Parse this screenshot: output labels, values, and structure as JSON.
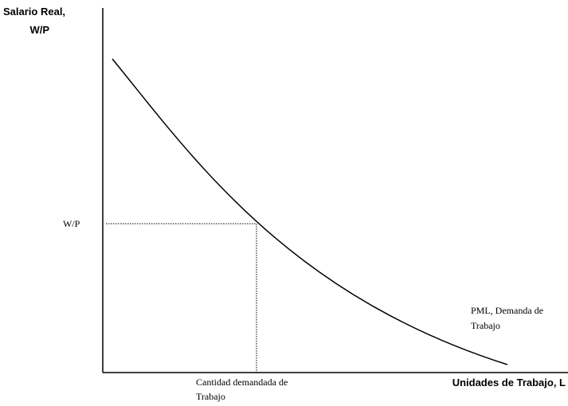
{
  "axis_labels": {
    "y": [
      "Salario Real,",
      "W/P"
    ],
    "x": "Unidades de Trabajo, L"
  },
  "curve_label": [
    "PML, Demanda de",
    "Trabajo"
  ],
  "point_labels": {
    "wage": "W/P",
    "quantity": [
      "Cantidad demandada de",
      "Trabajo"
    ]
  }
}
